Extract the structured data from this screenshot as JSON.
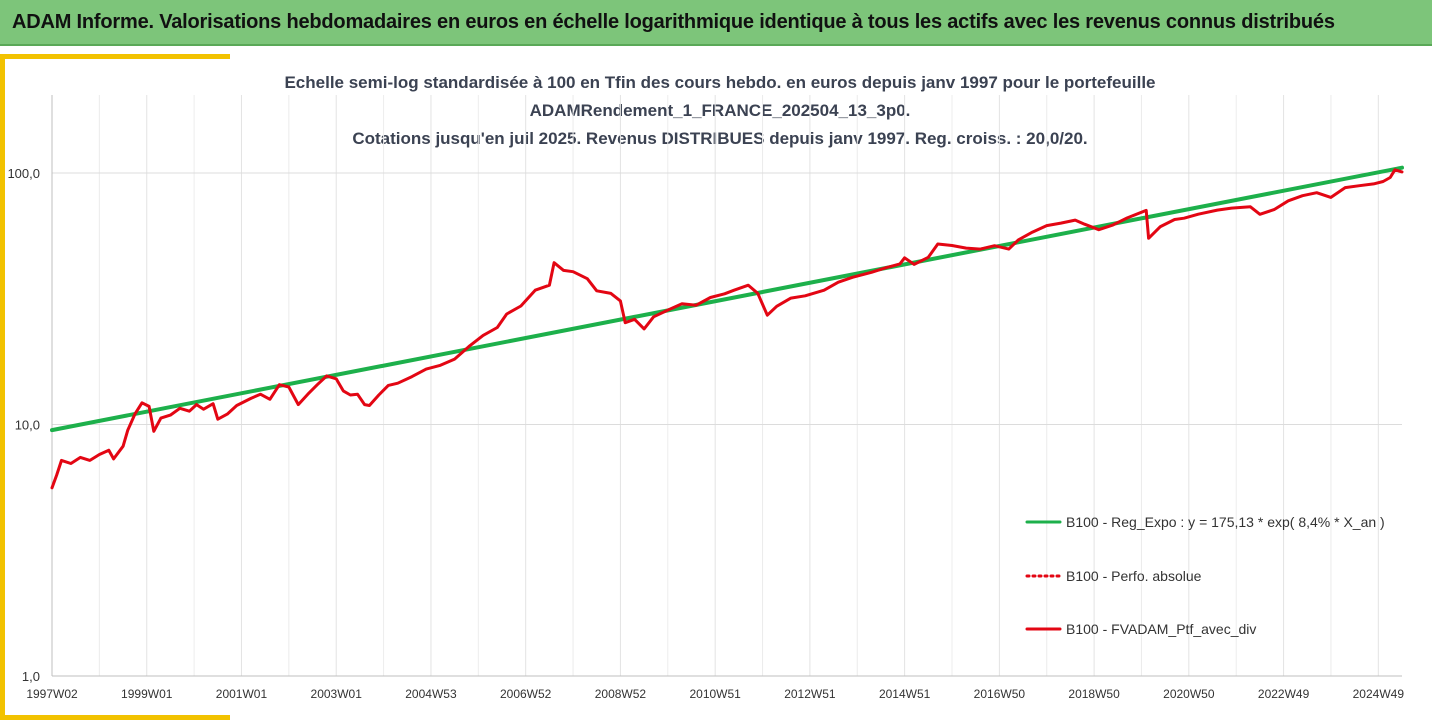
{
  "header": {
    "title": "ADAM Informe. Valorisations hebdomadaires en euros en échelle logarithmique identique à tous les actifs avec les revenus connus distribués"
  },
  "colors": {
    "header_bg": "#7dc57a",
    "accent": "#f2c200",
    "regression": "#1db04b",
    "portfolio": "#e30613"
  },
  "chart_data": {
    "type": "line",
    "title_lines": [
      "Echelle semi-log standardisée à 100 en Tfin des cours hebdo.  en euros depuis janv 1997 pour le portefeuille",
      "ADAMRendement_1_FRANCE_202504_13_3p0.",
      "Cotations  jusqu'en juil 2025. Revenus DISTRIBUES depuis janv 1997. Reg. croiss. : 20,0/20."
    ],
    "y_scale": "log",
    "ylim": [
      1,
      160
    ],
    "y_ticks": [
      {
        "value": 1,
        "label": "1,0"
      },
      {
        "value": 10,
        "label": "10,0"
      },
      {
        "value": 100,
        "label": "100,0"
      }
    ],
    "xlim": [
      1997.0,
      2025.5
    ],
    "x_ticks": [
      {
        "value": 1997.0,
        "label": "1997W02"
      },
      {
        "value": 1999.0,
        "label": "1999W01"
      },
      {
        "value": 2001.0,
        "label": "2001W01"
      },
      {
        "value": 2003.0,
        "label": "2003W01"
      },
      {
        "value": 2005.0,
        "label": "2004W53"
      },
      {
        "value": 2007.0,
        "label": "2006W52"
      },
      {
        "value": 2009.0,
        "label": "2008W52"
      },
      {
        "value": 2011.0,
        "label": "2010W51"
      },
      {
        "value": 2013.0,
        "label": "2012W51"
      },
      {
        "value": 2015.0,
        "label": "2014W51"
      },
      {
        "value": 2017.0,
        "label": "2016W50"
      },
      {
        "value": 2019.0,
        "label": "2018W50"
      },
      {
        "value": 2021.0,
        "label": "2020W50"
      },
      {
        "value": 2023.0,
        "label": "2022W49"
      },
      {
        "value": 2025.0,
        "label": "2024W49"
      }
    ],
    "grid": "vertical",
    "legend_position": "right",
    "series": [
      {
        "name": "B100 - Reg_Expo : y = 175,13 * exp( 8,4% *  X_an )",
        "style": "solid",
        "color": "#1db04b",
        "points": [
          [
            1997.0,
            9.5
          ],
          [
            2025.5,
            105
          ]
        ]
      },
      {
        "name": "B100 - Perfo. absolue",
        "style": "dotted",
        "color": "#e30613",
        "points": []
      },
      {
        "name": "B100 - FVADAM_Ptf_avec_div",
        "style": "solid",
        "color": "#e30613",
        "points": [
          [
            1997.0,
            5.6
          ],
          [
            1997.1,
            6.3
          ],
          [
            1997.2,
            7.2
          ],
          [
            1997.4,
            7.0
          ],
          [
            1997.6,
            7.4
          ],
          [
            1997.8,
            7.2
          ],
          [
            1998.0,
            7.6
          ],
          [
            1998.2,
            7.9
          ],
          [
            1998.3,
            7.3
          ],
          [
            1998.5,
            8.2
          ],
          [
            1998.6,
            9.5
          ],
          [
            1998.75,
            11.0
          ],
          [
            1998.9,
            12.2
          ],
          [
            1999.05,
            11.8
          ],
          [
            1999.15,
            9.4
          ],
          [
            1999.3,
            10.6
          ],
          [
            1999.5,
            10.9
          ],
          [
            1999.7,
            11.6
          ],
          [
            1999.9,
            11.3
          ],
          [
            2000.05,
            12.0
          ],
          [
            2000.2,
            11.5
          ],
          [
            2000.4,
            12.1
          ],
          [
            2000.5,
            10.5
          ],
          [
            2000.7,
            11.0
          ],
          [
            2000.9,
            11.9
          ],
          [
            2001.2,
            12.7
          ],
          [
            2001.4,
            13.2
          ],
          [
            2001.6,
            12.6
          ],
          [
            2001.8,
            14.4
          ],
          [
            2002.0,
            14.1
          ],
          [
            2002.2,
            12.0
          ],
          [
            2002.4,
            13.2
          ],
          [
            2002.6,
            14.4
          ],
          [
            2002.8,
            15.6
          ],
          [
            2003.0,
            15.2
          ],
          [
            2003.15,
            13.6
          ],
          [
            2003.3,
            13.1
          ],
          [
            2003.45,
            13.2
          ],
          [
            2003.6,
            12.0
          ],
          [
            2003.7,
            11.9
          ],
          [
            2003.9,
            13.1
          ],
          [
            2004.1,
            14.3
          ],
          [
            2004.3,
            14.6
          ],
          [
            2004.6,
            15.5
          ],
          [
            2004.9,
            16.6
          ],
          [
            2005.2,
            17.2
          ],
          [
            2005.5,
            18.2
          ],
          [
            2005.8,
            20.4
          ],
          [
            2006.1,
            22.6
          ],
          [
            2006.4,
            24.3
          ],
          [
            2006.6,
            27.5
          ],
          [
            2006.9,
            29.6
          ],
          [
            2007.2,
            34.2
          ],
          [
            2007.5,
            35.8
          ],
          [
            2007.6,
            44.0
          ],
          [
            2007.8,
            41.0
          ],
          [
            2008.0,
            40.5
          ],
          [
            2008.3,
            38.0
          ],
          [
            2008.5,
            34.0
          ],
          [
            2008.8,
            33.2
          ],
          [
            2009.0,
            31.0
          ],
          [
            2009.1,
            25.4
          ],
          [
            2009.3,
            26.2
          ],
          [
            2009.5,
            24.0
          ],
          [
            2009.7,
            26.8
          ],
          [
            2010.0,
            28.5
          ],
          [
            2010.3,
            30.2
          ],
          [
            2010.6,
            29.8
          ],
          [
            2010.9,
            32.0
          ],
          [
            2011.2,
            33.1
          ],
          [
            2011.4,
            34.2
          ],
          [
            2011.7,
            35.8
          ],
          [
            2011.9,
            33.2
          ],
          [
            2012.1,
            27.2
          ],
          [
            2012.3,
            29.5
          ],
          [
            2012.6,
            31.8
          ],
          [
            2012.9,
            32.5
          ],
          [
            2013.3,
            34.2
          ],
          [
            2013.6,
            36.8
          ],
          [
            2013.9,
            38.5
          ],
          [
            2014.3,
            40.3
          ],
          [
            2014.6,
            42.0
          ],
          [
            2014.9,
            43.5
          ],
          [
            2015.0,
            46.0
          ],
          [
            2015.2,
            43.3
          ],
          [
            2015.5,
            46.2
          ],
          [
            2015.7,
            52.2
          ],
          [
            2016.0,
            51.5
          ],
          [
            2016.3,
            50.3
          ],
          [
            2016.6,
            49.8
          ],
          [
            2016.9,
            51.4
          ],
          [
            2017.2,
            49.8
          ],
          [
            2017.4,
            54.2
          ],
          [
            2017.7,
            58.2
          ],
          [
            2018.0,
            61.8
          ],
          [
            2018.3,
            63.2
          ],
          [
            2018.6,
            65.0
          ],
          [
            2018.8,
            62.6
          ],
          [
            2019.1,
            59.5
          ],
          [
            2019.4,
            62.2
          ],
          [
            2019.7,
            66.3
          ],
          [
            2020.1,
            71.0
          ],
          [
            2020.15,
            55.0
          ],
          [
            2020.4,
            61.2
          ],
          [
            2020.7,
            65.3
          ],
          [
            2020.9,
            66.1
          ],
          [
            2021.2,
            68.6
          ],
          [
            2021.6,
            71.2
          ],
          [
            2021.9,
            72.5
          ],
          [
            2022.3,
            73.4
          ],
          [
            2022.5,
            68.5
          ],
          [
            2022.8,
            71.5
          ],
          [
            2023.1,
            77.5
          ],
          [
            2023.4,
            81.2
          ],
          [
            2023.7,
            83.5
          ],
          [
            2024.0,
            80.0
          ],
          [
            2024.3,
            87.5
          ],
          [
            2024.6,
            89.0
          ],
          [
            2024.9,
            90.5
          ],
          [
            2025.1,
            92.5
          ],
          [
            2025.25,
            96.0
          ],
          [
            2025.35,
            103.0
          ],
          [
            2025.5,
            101.0
          ]
        ]
      }
    ]
  }
}
